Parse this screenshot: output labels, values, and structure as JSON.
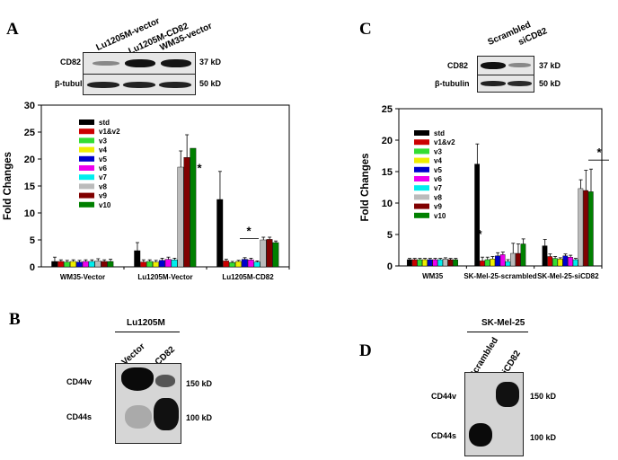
{
  "panel_a": {
    "letter": "A",
    "lanes": [
      "Lu1205M-vector",
      "Lu1205M-CD82",
      "WM35-vector"
    ],
    "rows": [
      {
        "name": "CD82",
        "size": "37 kD"
      },
      {
        "name": "β-tubulin",
        "size": "50 kD"
      }
    ]
  },
  "panel_c": {
    "letter": "C",
    "lanes": [
      "Scrambled",
      "siCD82"
    ],
    "rows": [
      {
        "name": "CD82",
        "size": "37 kD"
      },
      {
        "name": "β-tubulin",
        "size": "50 kD"
      }
    ]
  },
  "panel_b": {
    "letter": "B",
    "header": "Lu1205M",
    "lanes": [
      "Vector",
      "CD82"
    ],
    "row_labels": [
      "CD44v",
      "CD44s"
    ],
    "sizes": [
      "150 kD",
      "100 kD"
    ]
  },
  "panel_d": {
    "letter": "D",
    "header": "SK-Mel-25",
    "lanes": [
      "Scrambled",
      "siCD82"
    ],
    "row_labels": [
      "CD44v",
      "CD44s"
    ],
    "sizes": [
      "150 kD",
      "100 kD"
    ]
  },
  "colors": {
    "std": "#000000",
    "v1&v2": "#cc0000",
    "v3": "#33dd33",
    "v4": "#eeee00",
    "v5": "#0000cc",
    "v6": "#ee00ee",
    "v7": "#00eeee",
    "v8": "#bbbbbb",
    "v9": "#800000",
    "v10": "#008000"
  },
  "chart_data": [
    {
      "type": "bar",
      "ylabel": "Fold Changes",
      "ylim": [
        0,
        30
      ],
      "yticks": [
        0,
        5,
        10,
        15,
        20,
        25,
        30
      ],
      "categories": [
        "WM35-Vector",
        "Lu1205M-Vector",
        "Lu1205M-CD82"
      ],
      "legend": "top-left",
      "annotations": [
        "*",
        "*"
      ],
      "series": [
        {
          "name": "std",
          "values": [
            1.0,
            3.0,
            12.5
          ],
          "errors": [
            0.8,
            1.5,
            5.2
          ]
        },
        {
          "name": "v1&v2",
          "values": [
            1.0,
            0.9,
            1.1
          ],
          "errors": [
            0.3,
            0.4,
            0.3
          ]
        },
        {
          "name": "v3",
          "values": [
            0.9,
            1.0,
            0.8
          ],
          "errors": [
            0.3,
            0.3,
            0.2
          ]
        },
        {
          "name": "v4",
          "values": [
            1.0,
            0.9,
            1.0
          ],
          "errors": [
            0.3,
            0.3,
            0.2
          ]
        },
        {
          "name": "v5",
          "values": [
            0.9,
            1.2,
            1.4
          ],
          "errors": [
            0.3,
            0.4,
            0.3
          ]
        },
        {
          "name": "v6",
          "values": [
            1.0,
            1.4,
            1.3
          ],
          "errors": [
            0.3,
            0.4,
            0.3
          ]
        },
        {
          "name": "v7",
          "values": [
            1.0,
            1.3,
            0.9
          ],
          "errors": [
            0.3,
            0.3,
            0.2
          ]
        },
        {
          "name": "v8",
          "values": [
            1.1,
            18.5,
            5.0
          ],
          "errors": [
            0.4,
            3.0,
            0.5
          ]
        },
        {
          "name": "v9",
          "values": [
            1.0,
            20.3,
            5.1
          ],
          "errors": [
            0.3,
            4.2,
            0.4
          ]
        },
        {
          "name": "v10",
          "values": [
            1.0,
            22.0,
            4.5
          ],
          "errors": [
            0.4,
            0.0,
            0.3
          ]
        }
      ]
    },
    {
      "type": "bar",
      "ylabel": "Fold Changes",
      "ylim": [
        0,
        25
      ],
      "yticks": [
        0,
        5,
        10,
        15,
        20,
        25
      ],
      "categories": [
        "WM35",
        "SK-Mel-25-scrambled",
        "SK-Mel-25-siCD82"
      ],
      "legend": "top-left",
      "annotations": [
        "*",
        "*"
      ],
      "series": [
        {
          "name": "std",
          "values": [
            1.0,
            16.2,
            3.2
          ],
          "errors": [
            0.2,
            3.2,
            1.0
          ]
        },
        {
          "name": "v1&v2",
          "values": [
            1.0,
            0.8,
            1.5
          ],
          "errors": [
            0.2,
            0.6,
            0.4
          ]
        },
        {
          "name": "v3",
          "values": [
            1.0,
            1.0,
            1.2
          ],
          "errors": [
            0.2,
            0.4,
            0.3
          ]
        },
        {
          "name": "v4",
          "values": [
            1.0,
            1.1,
            1.1
          ],
          "errors": [
            0.2,
            0.4,
            0.2
          ]
        },
        {
          "name": "v5",
          "values": [
            1.0,
            1.6,
            1.6
          ],
          "errors": [
            0.2,
            0.5,
            0.3
          ]
        },
        {
          "name": "v6",
          "values": [
            1.0,
            1.8,
            1.4
          ],
          "errors": [
            0.2,
            0.4,
            0.3
          ]
        },
        {
          "name": "v7",
          "values": [
            1.0,
            0.7,
            1.0
          ],
          "errors": [
            0.2,
            0.3,
            0.2
          ]
        },
        {
          "name": "v8",
          "values": [
            1.1,
            2.0,
            12.3
          ],
          "errors": [
            0.2,
            1.6,
            1.4
          ]
        },
        {
          "name": "v9",
          "values": [
            1.0,
            2.0,
            12.0
          ],
          "errors": [
            0.2,
            1.5,
            3.2
          ]
        },
        {
          "name": "v10",
          "values": [
            1.0,
            3.5,
            11.8
          ],
          "errors": [
            0.2,
            0.8,
            3.6
          ]
        }
      ]
    }
  ]
}
